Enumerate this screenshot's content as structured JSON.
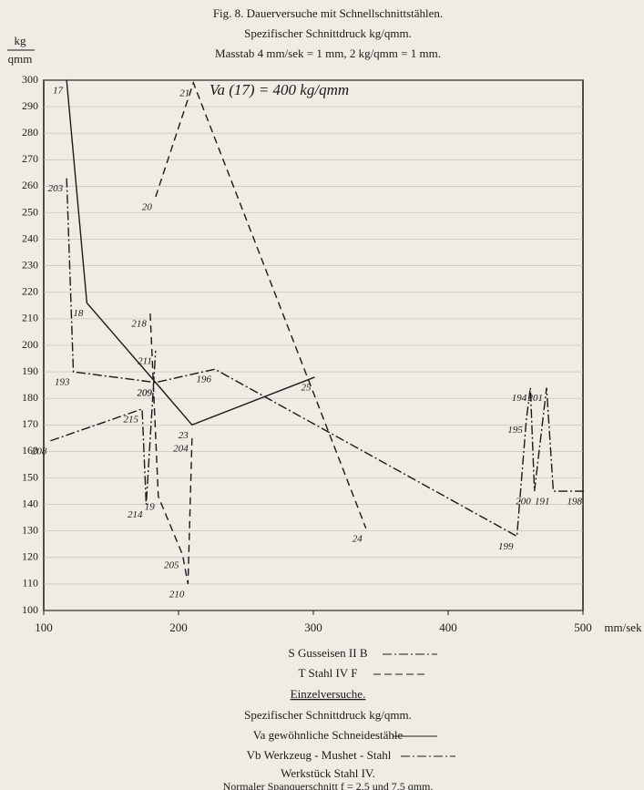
{
  "chart_data": {
    "type": "line",
    "title": "Fig. 8. Dauerversuche mit Schnellschnittstählen.",
    "subtitle": "Spezifischer Schnittdruck kg/qmm.",
    "scale_note": "Masstab 4 mm/sek = 1 mm, 2 kg/qmm = 1 mm.",
    "y_unit_top": "kg",
    "y_unit_bottom": "qmm",
    "x_unit": "mm/sek",
    "annotation": "Va (17) = 400 kg/qmm",
    "xlim": [
      100,
      500
    ],
    "ylim": [
      100,
      300
    ],
    "xticks": [
      100,
      200,
      300,
      400,
      500
    ],
    "yticks": [
      100,
      110,
      120,
      130,
      140,
      150,
      160,
      170,
      180,
      190,
      200,
      210,
      220,
      230,
      240,
      250,
      260,
      270,
      280,
      290,
      300
    ],
    "color": "#1a1a1a",
    "series": [
      {
        "style": "solid",
        "x": [
          117,
          132,
          183,
          210,
          301
        ],
        "values": [
          300,
          216,
          186,
          170,
          188
        ],
        "point_labels": [
          "17",
          "18",
          "209",
          "23",
          "25"
        ]
      },
      {
        "style": "dashdot",
        "x": [
          117,
          122,
          183,
          227,
          451,
          458,
          461,
          464,
          473,
          478,
          502
        ],
        "values": [
          263,
          190,
          186,
          191,
          128,
          172,
          184,
          145,
          184,
          145,
          145
        ],
        "point_labels": [
          "203",
          "193",
          "209",
          "196",
          "199",
          "195",
          "194",
          "200",
          "201",
          "191",
          "198"
        ]
      },
      {
        "style": "dashdot",
        "x": [
          105,
          173,
          176,
          183
        ],
        "values": [
          164,
          176,
          140,
          198
        ],
        "point_labels": [
          "208",
          "215",
          "214",
          "211"
        ]
      },
      {
        "style": "dashed",
        "x": [
          183,
          211,
          339
        ],
        "values": [
          256,
          299,
          131
        ],
        "point_labels": [
          "20",
          "21",
          "24"
        ]
      },
      {
        "style": "dashed",
        "x": [
          179,
          185,
          203,
          207,
          210
        ],
        "values": [
          212,
          143,
          121,
          110,
          165
        ],
        "point_labels": [
          "218",
          "19",
          "205",
          "210",
          "204"
        ]
      }
    ],
    "captions": [
      "S Gusseisen II B",
      "T Stahl IV F",
      "Einzelversuche.",
      "Spezifischer Schnittdruck kg/qmm.",
      "Va gewöhnliche Schneidestähle",
      "Vb Werkzeug - Mushet - Stahl",
      "Werkstück Stahl IV.",
      "Normaler Spanquerschnitt f = 2,5 und 7,5 qmm."
    ]
  }
}
